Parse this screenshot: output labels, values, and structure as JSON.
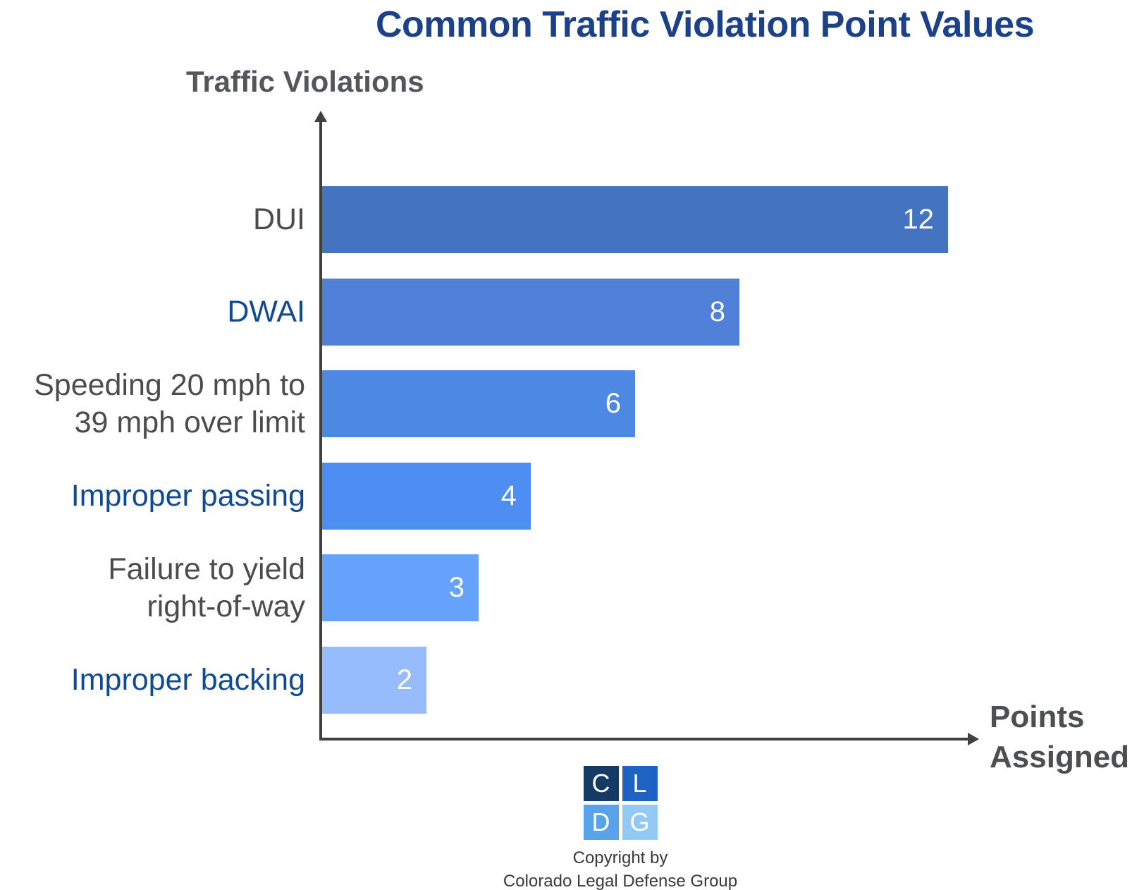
{
  "title": "Common Traffic Violation Point Values",
  "axes": {
    "y_title": "Traffic Violations",
    "x_title": "Points\nAssigned"
  },
  "chart_data": {
    "type": "bar",
    "orientation": "horizontal",
    "title": "Common Traffic Violation Point Values",
    "xlabel": "Points Assigned",
    "ylabel": "Traffic Violations",
    "categories": [
      "DUI",
      "DWAI",
      "Speeding 20 mph to\n39 mph over limit",
      "Improper passing",
      "Failure to yield\nright-of-way",
      "Improper backing"
    ],
    "values": [
      12,
      8,
      6,
      4,
      3,
      2
    ],
    "value_labels": [
      "12",
      "8",
      "6",
      "4",
      "3",
      "2"
    ],
    "bar_colors": [
      "#4473bf",
      "#4f81d8",
      "#4d88e2",
      "#4e8ef3",
      "#66a1fb",
      "#96bcfd"
    ],
    "category_label_colors": [
      "#4c4c4e",
      "#114a94",
      "#4c4c4e",
      "#114a94",
      "#4c4c4e",
      "#114a94"
    ],
    "xlim": [
      0,
      12
    ],
    "grid": false,
    "legend": false
  },
  "colors": {
    "title": "#1b4288",
    "axis": "#3f4040",
    "axis_titles": "#54565a",
    "value_label": "#ffffff",
    "copyright_text": "#3a3a3a"
  },
  "footer": {
    "logo_tiles": [
      {
        "letter": "C",
        "color": "#143a66"
      },
      {
        "letter": "L",
        "color": "#1e63c4"
      },
      {
        "letter": "D",
        "color": "#58a2ea"
      },
      {
        "letter": "G",
        "color": "#93c9f7"
      }
    ],
    "copyright_line1": "Copyright by",
    "copyright_line2": "Colorado Legal Defense Group"
  }
}
